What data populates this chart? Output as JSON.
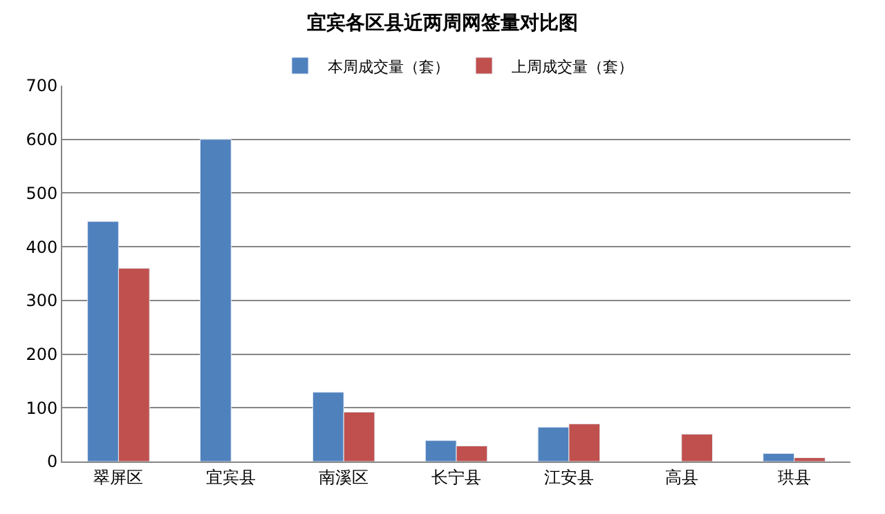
{
  "chart_data": {
    "type": "bar",
    "title": "宜宾各区县近两周网签量对比图",
    "categories": [
      "翠屏区",
      "宜宾县",
      "南溪区",
      "长宁县",
      "江安县",
      "高县",
      "珙县"
    ],
    "series": [
      {
        "name": "本周成交量（套）",
        "color": "#4f81bd",
        "values": [
          447,
          600,
          129,
          39,
          64,
          null,
          15
        ]
      },
      {
        "name": "上周成交量（套）",
        "color": "#c0504d",
        "values": [
          360,
          null,
          92,
          29,
          70,
          51,
          7
        ]
      }
    ],
    "ylim": [
      0,
      700
    ],
    "yticks": [
      0,
      100,
      200,
      300,
      400,
      500,
      600,
      700
    ],
    "grid": "y",
    "legend": "top"
  }
}
